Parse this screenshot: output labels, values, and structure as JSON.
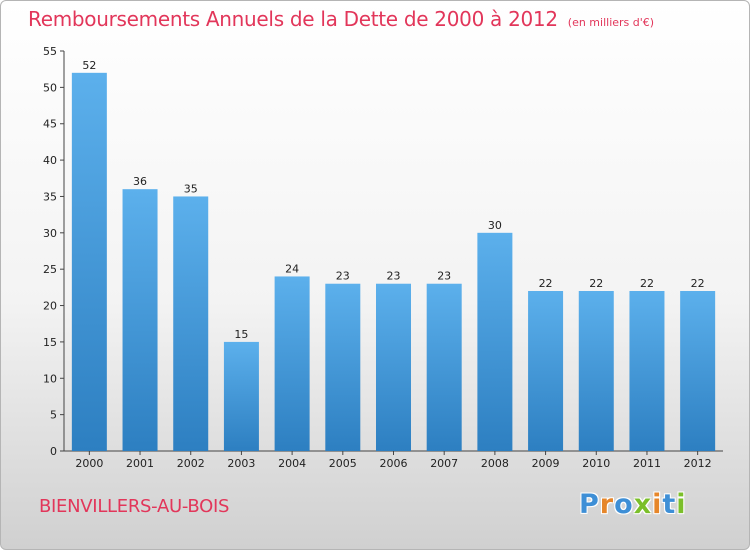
{
  "title": "Remboursements Annuels de la Dette de 2000 à 2012",
  "subtitle": "(en milliers d'€)",
  "commune": "BIENVILLERS-AU-BOIS",
  "logo": {
    "letters": [
      "P",
      "r",
      "o",
      "x",
      "i",
      "t",
      "i"
    ],
    "colors": [
      "#3e8fd6",
      "#e6862a",
      "#3e8fd6",
      "#7bbf2a",
      "#e6862a",
      "#3e8fd6",
      "#7bbf2a"
    ]
  },
  "colors": {
    "title": "#e2365a",
    "bar_top": "#5cb0ec",
    "bar_bottom": "#2d7fc1"
  },
  "chart_data": {
    "type": "bar",
    "title": "Remboursements Annuels de la Dette de 2000 à 2012",
    "subtitle": "(en milliers d'€)",
    "categories": [
      "2000",
      "2001",
      "2002",
      "2003",
      "2004",
      "2005",
      "2006",
      "2007",
      "2008",
      "2009",
      "2010",
      "2011",
      "2012"
    ],
    "values": [
      52,
      36,
      35,
      15,
      24,
      23,
      23,
      23,
      30,
      22,
      22,
      22,
      22
    ],
    "ylim": [
      0,
      55
    ],
    "yticks": [
      0,
      5,
      10,
      15,
      20,
      25,
      30,
      35,
      40,
      45,
      50,
      55
    ],
    "grid": false,
    "legend": "none"
  }
}
